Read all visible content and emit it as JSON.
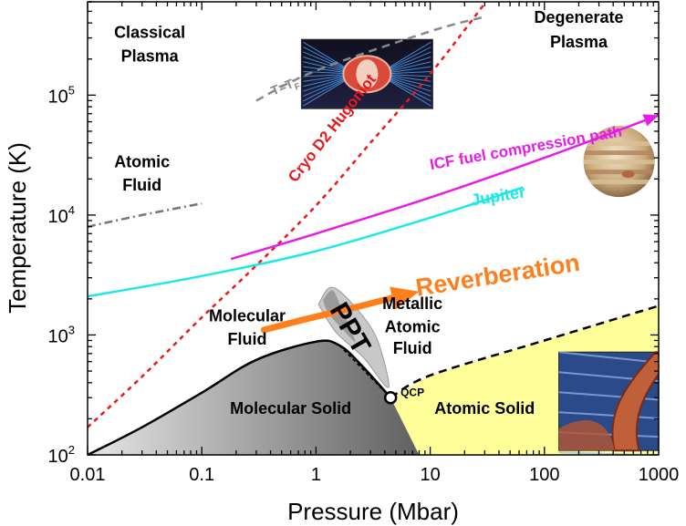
{
  "chart_data": {
    "type": "line",
    "title": "",
    "xlabel": "Pressure (Mbar)",
    "ylabel": "Temperature (K)",
    "x_scale": "log",
    "y_scale": "log",
    "xlim": [
      0.01,
      1000
    ],
    "ylim": [
      100,
      600000
    ],
    "grid": false,
    "x_ticks": [
      {
        "value": 0.01,
        "label": "0.01"
      },
      {
        "value": 0.1,
        "label": "0.1"
      },
      {
        "value": 1,
        "label": "1"
      },
      {
        "value": 10,
        "label": "10"
      },
      {
        "value": 100,
        "label": "100"
      },
      {
        "value": 1000,
        "label": "1000"
      }
    ],
    "y_ticks": [
      {
        "value": 100,
        "base": "10",
        "exp": "2"
      },
      {
        "value": 1000,
        "base": "10",
        "exp": "3"
      },
      {
        "value": 10000,
        "base": "10",
        "exp": "4"
      },
      {
        "value": 100000,
        "base": "10",
        "exp": "5"
      }
    ],
    "series": [
      {
        "name": "Cryo D2 Hugoniot",
        "style": "dashed",
        "color": "#e8191c",
        "x": [
          0.01,
          0.03,
          0.1,
          0.3,
          1,
          3,
          10,
          30
        ],
        "y": [
          170,
          450,
          1400,
          3800,
          12000,
          40000,
          150000,
          580000
        ]
      },
      {
        "name": "ICF fuel compression path",
        "style": "solid",
        "color": "#e81ce8",
        "x": [
          0.18,
          1,
          10,
          100,
          1000
        ],
        "y": [
          4300,
          7000,
          14000,
          30000,
          68000
        ]
      },
      {
        "name": "Jupiter",
        "style": "solid",
        "color": "#1ce8e8",
        "x": [
          0.01,
          0.1,
          1,
          10,
          65
        ],
        "y": [
          2100,
          3100,
          5000,
          9500,
          17000
        ]
      },
      {
        "name": "T=TF",
        "style": "dashed",
        "color": "#888888",
        "x": [
          0.3,
          1,
          10,
          30
        ],
        "y": [
          90000,
          160000,
          340000,
          450000
        ]
      },
      {
        "name": "Atomic/Molecular boundary",
        "style": "dash-dot",
        "color": "#777777",
        "x": [
          0.01,
          0.03,
          0.1
        ],
        "y": [
          8000,
          10000,
          12500
        ]
      },
      {
        "name": "Melting curve",
        "style": "solid",
        "color": "#000000",
        "x": [
          0.01,
          0.03,
          0.1,
          0.3,
          1,
          1.6,
          2.5,
          4.5
        ],
        "y": [
          100,
          170,
          330,
          620,
          880,
          820,
          560,
          300
        ]
      },
      {
        "name": "Metallic/Atomic solid boundary",
        "style": "dashed",
        "color": "#000000",
        "x": [
          4.5,
          10,
          100,
          1000
        ],
        "y": [
          300,
          460,
          900,
          1750
        ]
      },
      {
        "name": "Reverberation",
        "style": "arrow",
        "color": "#ff7f1c",
        "x": [
          0.35,
          0.8,
          2.5,
          8
        ],
        "y": [
          1100,
          1350,
          1750,
          2300
        ]
      }
    ],
    "annotations": [
      {
        "text": "Classical",
        "x": 0.035,
        "y": 300000
      },
      {
        "text": "Plasma",
        "x": 0.035,
        "y": 190000
      },
      {
        "text": "Degenerate",
        "x": 200,
        "y": 400000
      },
      {
        "text": "Plasma",
        "x": 200,
        "y": 250000
      },
      {
        "text": "Atomic",
        "x": 0.03,
        "y": 25000
      },
      {
        "text": "Fluid",
        "x": 0.03,
        "y": 16000
      },
      {
        "text": "Molecular",
        "x": 0.25,
        "y": 1300
      },
      {
        "text": "Fluid",
        "x": 0.25,
        "y": 830
      },
      {
        "text": "Metallic",
        "x": 7,
        "y": 1650
      },
      {
        "text": "Atomic",
        "x": 7,
        "y": 1050
      },
      {
        "text": "Fluid",
        "x": 7,
        "y": 700
      },
      {
        "text": "Molecular Solid",
        "x": 0.6,
        "y": 220
      },
      {
        "text": "Atomic Solid",
        "x": 30,
        "y": 220
      },
      {
        "text": "QCP",
        "x": 5.5,
        "y": 310
      },
      {
        "text": "PPT",
        "x": 1.7,
        "y": 1050
      },
      {
        "text": "Reverberation",
        "x": 40,
        "y": 2700
      },
      {
        "text": "T=T",
        "sub": "F",
        "x": 0.55,
        "y": 110000
      },
      {
        "text": "Cryo D2 Hugoniot",
        "x": 1.5,
        "y": 50000
      },
      {
        "text": "ICF fuel compression path",
        "x": 70,
        "y": 33000
      },
      {
        "text": "Jupiter",
        "x": 40,
        "y": 13000
      }
    ],
    "critical_point": {
      "label": "QCP",
      "x": 4.5,
      "y": 300
    },
    "regions": [
      {
        "name": "molecular-solid",
        "color": "#808080"
      },
      {
        "name": "atomic-solid",
        "color": "#ffff99"
      },
      {
        "name": "ppt",
        "color": "#c8c8c8"
      }
    ],
    "images": [
      {
        "name": "icf-target-image",
        "x": 2.8,
        "y": 150000
      },
      {
        "name": "jupiter-image",
        "x": 450,
        "y": 28000
      },
      {
        "name": "metallic-lattice-image",
        "x": 450,
        "y": 280
      }
    ]
  }
}
